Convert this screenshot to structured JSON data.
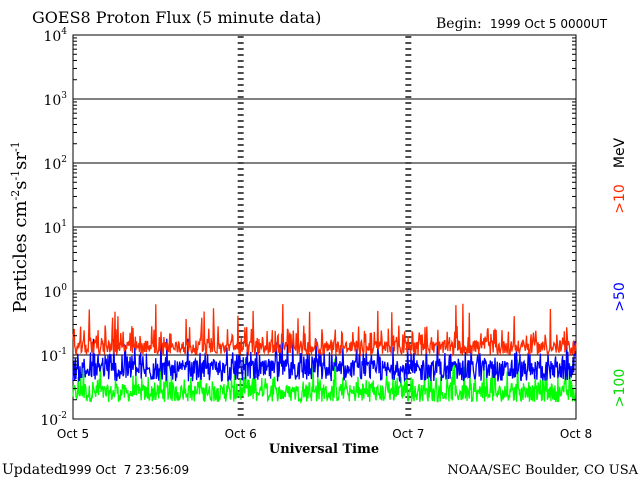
{
  "header": {
    "title": "GOES8 Proton Flux (5 minute data)",
    "begin_label": "Begin:",
    "begin_value": "1999 Oct 5 0000UT"
  },
  "footer": {
    "updated_label": "Updated",
    "updated_value": "1999 Oct  7 23:56:09",
    "credit": "NOAA/SEC Boulder, CO USA"
  },
  "chart_data": {
    "type": "line",
    "title": "GOES8 Proton Flux (5 minute data)",
    "xlabel": "Universal Time",
    "ylabel_base": "Particles cm",
    "ylabel_parts": [
      {
        "base": "Particles cm",
        "sup": "-2"
      },
      {
        "base": "s",
        "sup": "-1"
      },
      {
        "base": "sr",
        "sup": "-1"
      }
    ],
    "yscale": "log",
    "ylim": [
      0.01,
      10000
    ],
    "xlim_hours": [
      0,
      72
    ],
    "x_tick_labels": [
      "Oct 5",
      "Oct 6",
      "Oct 7",
      "Oct 8"
    ],
    "x_tick_hours": [
      0,
      24,
      48,
      72
    ],
    "y_ticks": [
      {
        "base": "10",
        "exp": "-2",
        "value": 0.01
      },
      {
        "base": "10",
        "exp": "-1",
        "value": 0.1
      },
      {
        "base": "10",
        "exp": "0",
        "value": 1
      },
      {
        "base": "10",
        "exp": "1",
        "value": 10
      },
      {
        "base": "10",
        "exp": "2",
        "value": 100
      },
      {
        "base": "10",
        "exp": "3",
        "value": 1000
      },
      {
        "base": "10",
        "exp": "4",
        "value": 10000
      }
    ],
    "grid": true,
    "series": [
      {
        "name": ">10",
        "color": "#ff2a00",
        "typical": 0.15,
        "peak": 0.65,
        "min": 0.085
      },
      {
        "name": ">50",
        "color": "#0000ff",
        "typical": 0.07,
        "peak": 0.2,
        "min": 0.03
      },
      {
        "name": ">100",
        "color": "#00ff00",
        "typical": 0.03,
        "peak": 0.09,
        "min": 0.015
      }
    ],
    "unit_label": "MeV",
    "legend_placement": "right"
  }
}
